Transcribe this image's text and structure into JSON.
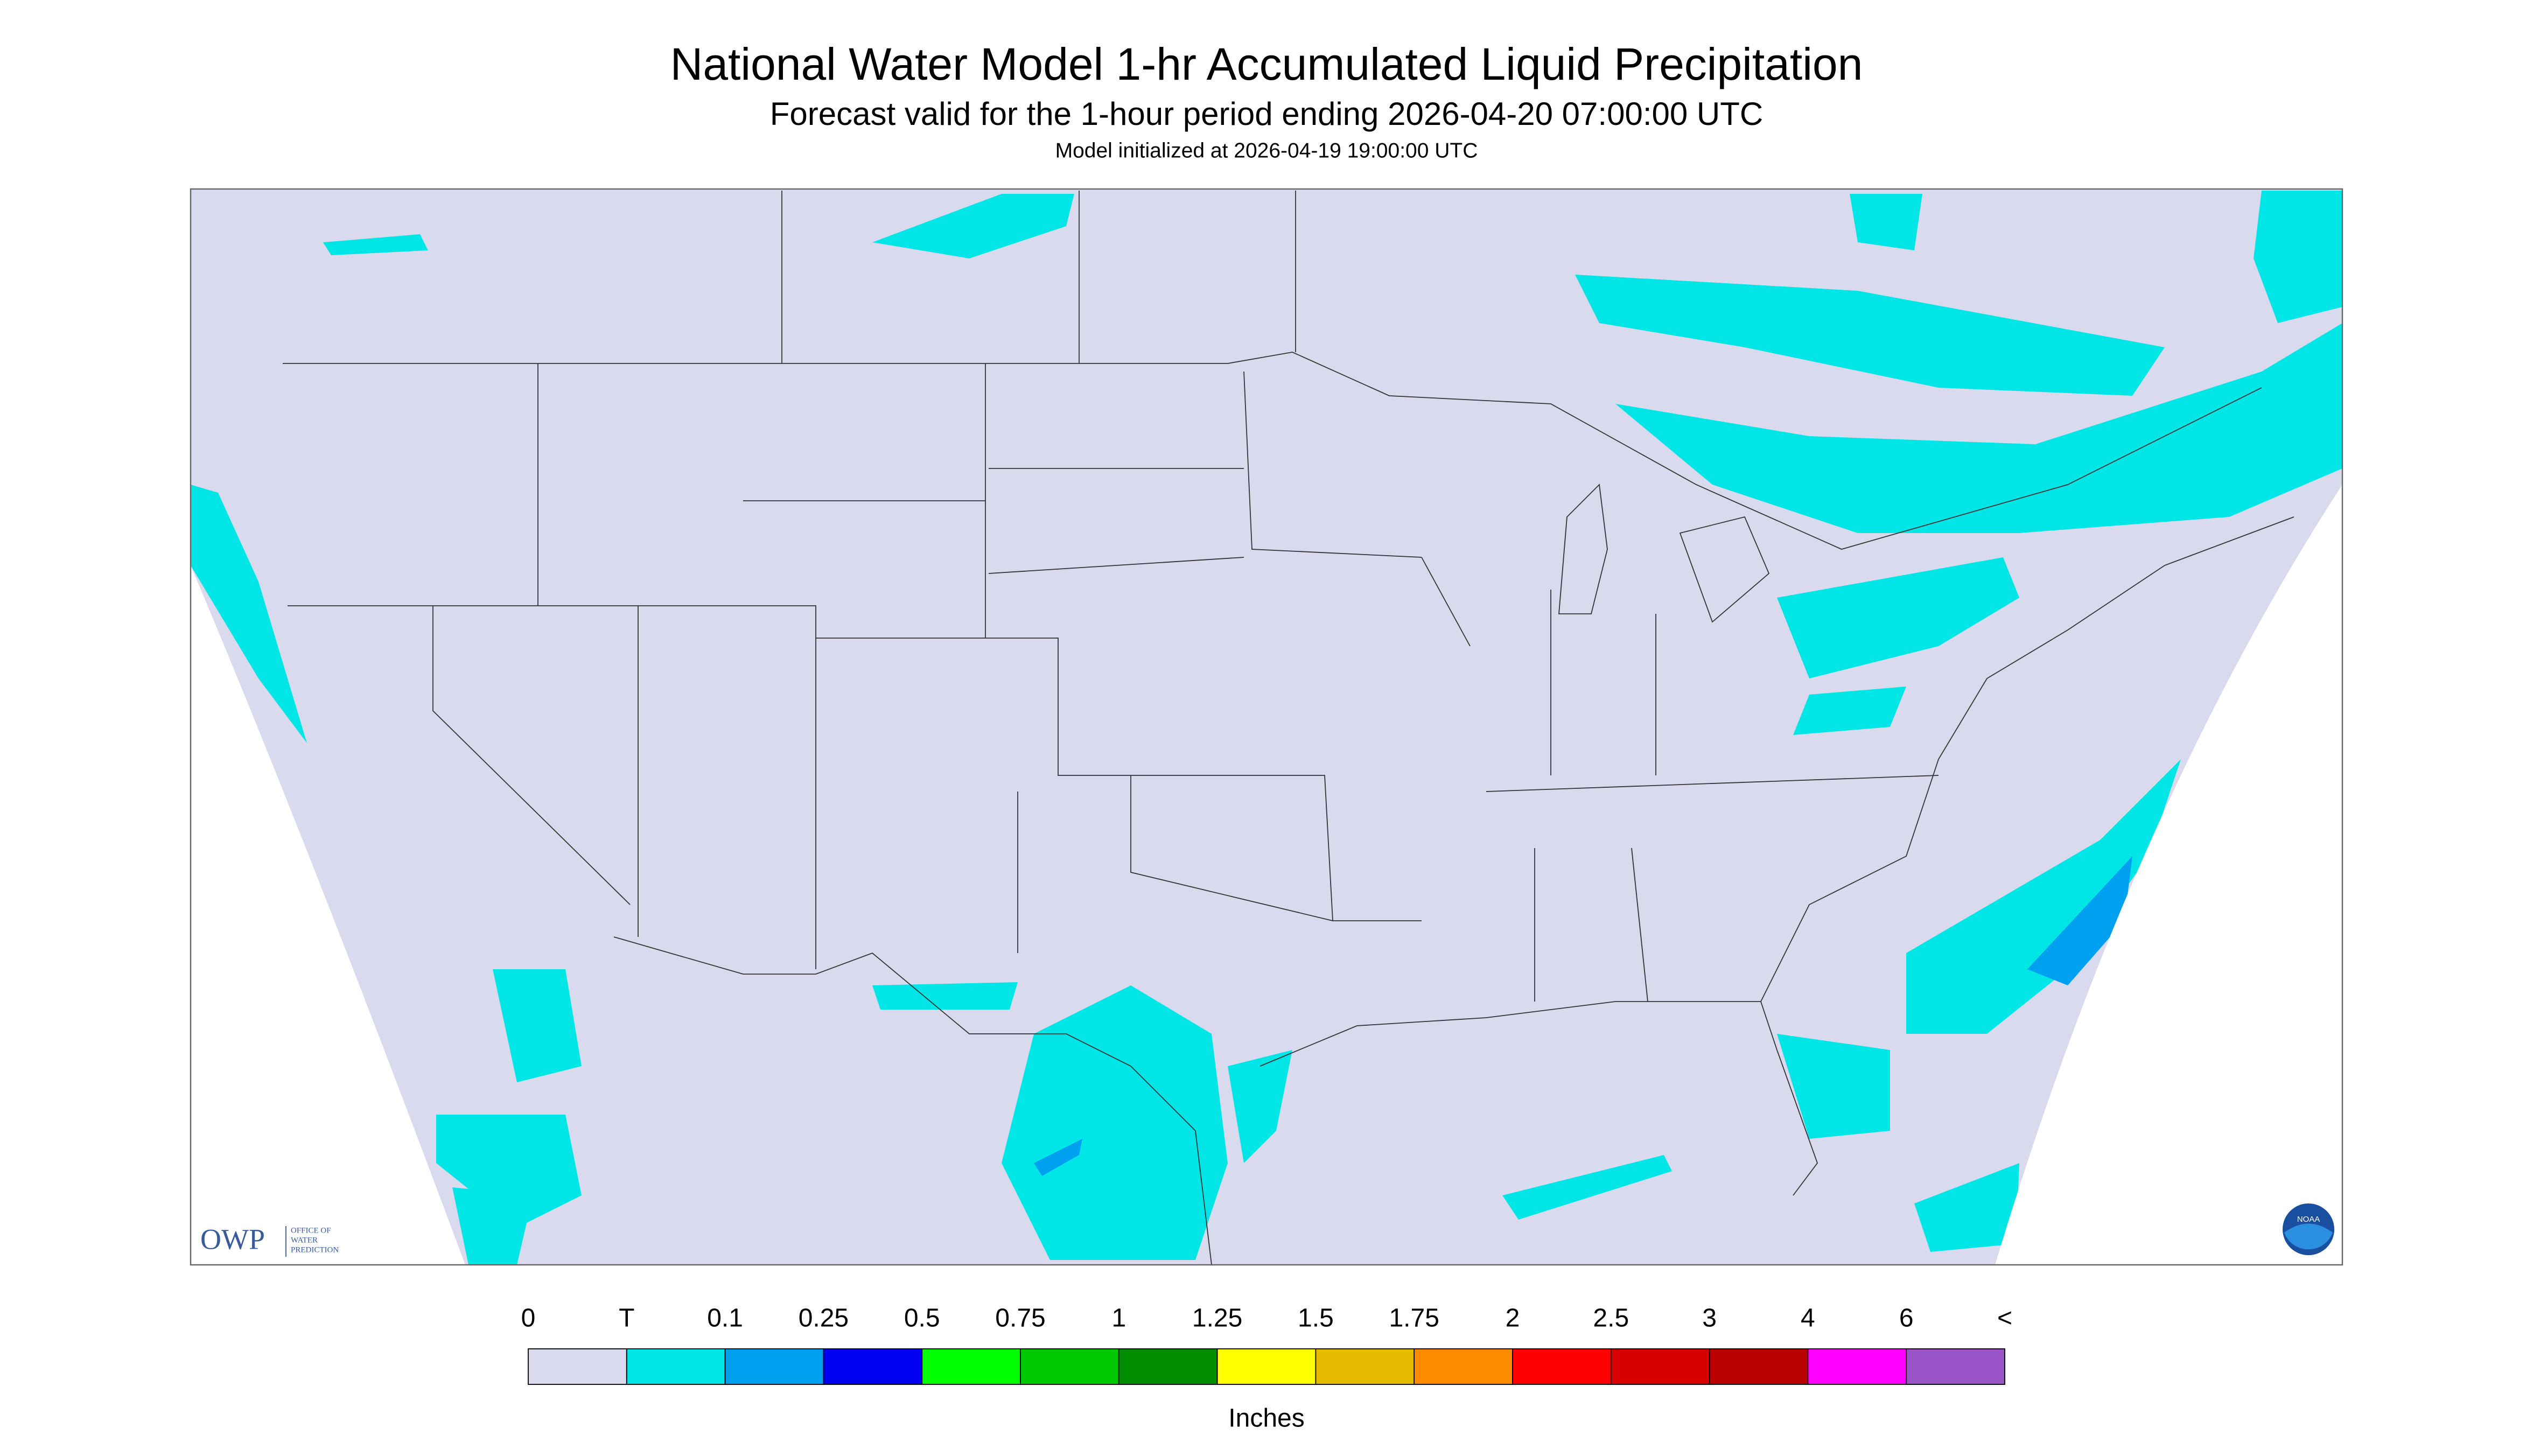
{
  "header": {
    "title": "National Water Model 1-hr Accumulated Liquid Precipitation",
    "subtitle": "Forecast valid for the 1-hour period ending 2026-04-20 07:00:00 UTC",
    "init": "Model initialized at 2026-04-19 19:00:00 UTC"
  },
  "logos": {
    "owp": "OWP",
    "owp_text": [
      "OFFICE OF",
      "WATER",
      "PREDICTION"
    ],
    "noaa": "NOAA"
  },
  "legend": {
    "labels": [
      "0",
      "T",
      "0.1",
      "0.25",
      "0.5",
      "0.75",
      "1",
      "1.25",
      "1.5",
      "1.75",
      "2",
      "2.5",
      "3",
      "4",
      "6",
      "<"
    ],
    "colors": [
      "#dadaee",
      "#00e6e6",
      "#00a0f0",
      "#0000f0",
      "#00ff00",
      "#00c800",
      "#008c00",
      "#ffff00",
      "#e6bc00",
      "#ff8c00",
      "#ff0000",
      "#d70000",
      "#bb0000",
      "#ff00ff",
      "#9955c8"
    ],
    "unit": "Inches"
  }
}
